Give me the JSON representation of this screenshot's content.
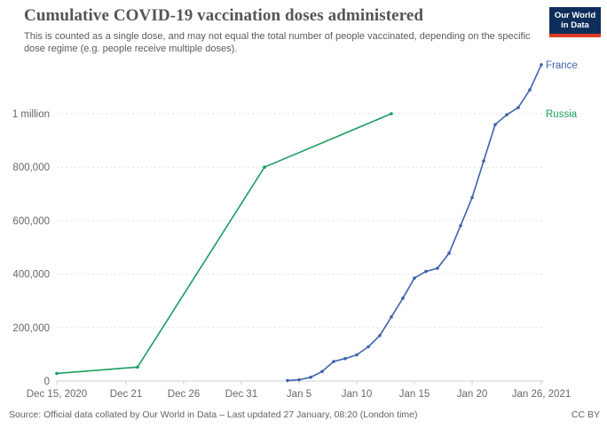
{
  "header": {
    "logo": {
      "line1": "Our World",
      "line2": "in Data"
    }
  },
  "footer": {
    "source": "Source: Official data collated by Our World in Data – Last updated 27 January, 08:20 (London time)",
    "license": "CC BY"
  },
  "chart_data": {
    "type": "line",
    "title": "Cumulative COVID-19 vaccination doses administered",
    "subtitle": "This is counted as a single dose, and may not equal the total number of people vaccinated, depending on the specific dose regime (e.g. people receive multiple doses).",
    "xlabel": "",
    "ylabel": "",
    "grid": "dashed horizontal",
    "legend_position": "end-of-line",
    "x_axis": {
      "start_date": "Dec 15, 2020",
      "end_date": "Jan 26, 2021",
      "ticks": [
        {
          "label": "Dec 15, 2020",
          "day": 0
        },
        {
          "label": "Dec 21",
          "day": 6
        },
        {
          "label": "Dec 26",
          "day": 11
        },
        {
          "label": "Dec 31",
          "day": 16
        },
        {
          "label": "Jan 5",
          "day": 21
        },
        {
          "label": "Jan 10",
          "day": 26
        },
        {
          "label": "Jan 15",
          "day": 31
        },
        {
          "label": "Jan 20",
          "day": 36
        },
        {
          "label": "Jan 26, 2021",
          "day": 42
        }
      ]
    },
    "y_axis": {
      "tick_values": [
        0,
        200000,
        400000,
        600000,
        800000,
        1000000
      ],
      "tick_labels": [
        "0",
        "200,000",
        "400,000",
        "600,000",
        "800,000",
        "1 million"
      ],
      "ylim": [
        0,
        1226000
      ]
    },
    "series": [
      {
        "name": "France",
        "color": "#3d62ad",
        "dates": [
          "Jan 4, 2021",
          "Jan 5, 2021",
          "Jan 6, 2021",
          "Jan 7, 2021",
          "Jan 8, 2021",
          "Jan 9, 2021",
          "Jan 10, 2021",
          "Jan 11, 2021",
          "Jan 12, 2021",
          "Jan 13, 2021",
          "Jan 14, 2021",
          "Jan 15, 2021",
          "Jan 16, 2021",
          "Jan 17, 2021",
          "Jan 18, 2021",
          "Jan 19, 2021",
          "Jan 20, 2021",
          "Jan 21, 2021",
          "Jan 22, 2021",
          "Jan 23, 2021",
          "Jan 24, 2021",
          "Jan 25, 2021",
          "Jan 26, 2021"
        ],
        "days": [
          20,
          21,
          22,
          23,
          24,
          25,
          26,
          27,
          28,
          29,
          30,
          31,
          32,
          33,
          34,
          35,
          36,
          37,
          38,
          39,
          40,
          41,
          42
        ],
        "values": [
          2000,
          5000,
          14000,
          36000,
          73000,
          84000,
          98000,
          128000,
          170000,
          240000,
          310000,
          385000,
          410000,
          422000,
          478000,
          581000,
          686000,
          823000,
          959000,
          996000,
          1023000,
          1089000,
          1183000
        ]
      },
      {
        "name": "Russia",
        "color": "#1a9e5f",
        "dates": [
          "Dec 15, 2020",
          "Dec 22, 2020",
          "Jan 2, 2021",
          "Jan 13, 2021"
        ],
        "days": [
          0,
          7,
          18,
          29
        ],
        "values": [
          28500,
          52000,
          800000,
          1000000
        ]
      }
    ]
  }
}
